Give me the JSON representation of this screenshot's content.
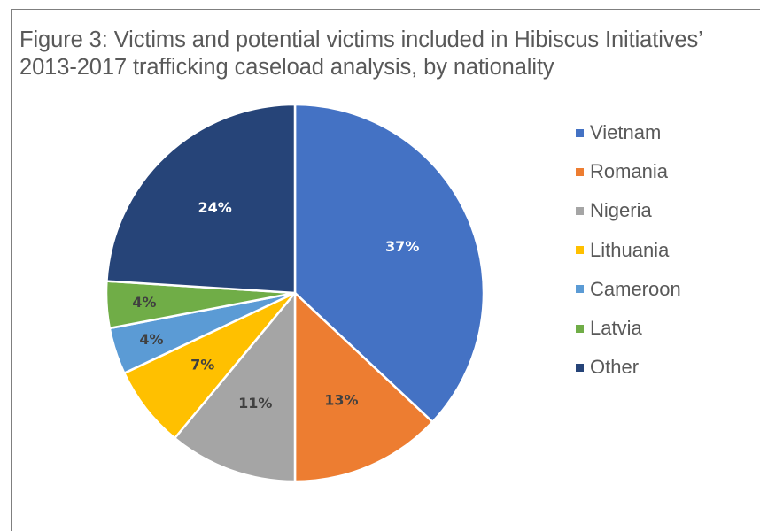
{
  "chart_data": {
    "type": "pie",
    "title_lines": [
      "Figure 3: Victims and potential victims included in Hibiscus Initiatives’",
      "2013-2017 trafficking caseload analysis, by nationality"
    ],
    "legend_position": "right",
    "slices": [
      {
        "label": "Vietnam",
        "value": 37,
        "display": "37%",
        "color": "#4472C4",
        "label_color": "#ffffff"
      },
      {
        "label": "Romania",
        "value": 13,
        "display": "13%",
        "color": "#ED7D31",
        "label_color": "#404040"
      },
      {
        "label": "Nigeria",
        "value": 11,
        "display": "11%",
        "color": "#A5A5A5",
        "label_color": "#404040"
      },
      {
        "label": "Lithuania",
        "value": 7,
        "display": "7%",
        "color": "#FFC000",
        "label_color": "#404040"
      },
      {
        "label": "Cameroon",
        "value": 4,
        "display": "4%",
        "color": "#5B9BD5",
        "label_color": "#404040"
      },
      {
        "label": "Latvia",
        "value": 4,
        "display": "4%",
        "color": "#70AD47",
        "label_color": "#404040"
      },
      {
        "label": "Other",
        "value": 24,
        "display": "24%",
        "color": "#264478",
        "label_color": "#ffffff"
      }
    ]
  }
}
